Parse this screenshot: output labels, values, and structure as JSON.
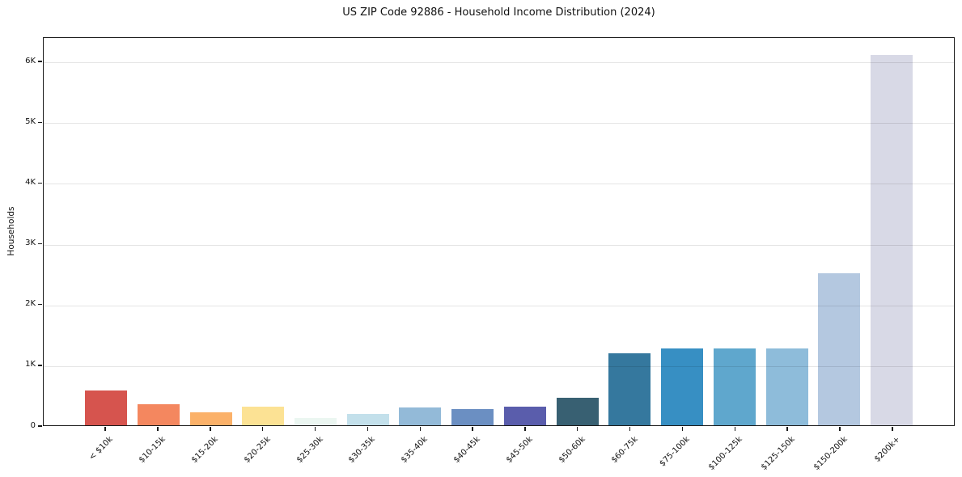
{
  "chart_data": {
    "type": "bar",
    "title": "US ZIP Code 92886 - Household Income Distribution (2024)",
    "xlabel": "",
    "ylabel": "Households",
    "categories": [
      "< $10k",
      "$10-15k",
      "$15-20k",
      "$20-25k",
      "$25-30k",
      "$30-35k",
      "$35-40k",
      "$40-45k",
      "$45-50k",
      "$50-60k",
      "$60-75k",
      "$75-100k",
      "$100-125k",
      "$125-150k",
      "$150-200k",
      "$200k+"
    ],
    "values": [
      570,
      350,
      210,
      310,
      120,
      190,
      290,
      260,
      300,
      450,
      1180,
      1270,
      1270,
      1270,
      2500,
      6100
    ],
    "bar_colors": [
      "#d6544e",
      "#f4875f",
      "#fbb169",
      "#fce294",
      "#ebf6f1",
      "#c3e0eb",
      "#93bad8",
      "#6b8fc2",
      "#5a5dac",
      "#386072",
      "#35789e",
      "#378fc3",
      "#5fa7cd",
      "#8ebcda",
      "#b4c8e0",
      "#d8d9e6"
    ],
    "ylim": [
      0,
      6400
    ],
    "yticks": {
      "values": [
        0,
        1000,
        2000,
        3000,
        4000,
        5000,
        6000
      ],
      "labels": [
        "0",
        "1K",
        "2K",
        "3K",
        "4K",
        "5K",
        "6K"
      ]
    },
    "grid": "horizontal",
    "legend": "none",
    "plot_bg": "#ffffff",
    "frame_color": "#1a1a1a"
  }
}
